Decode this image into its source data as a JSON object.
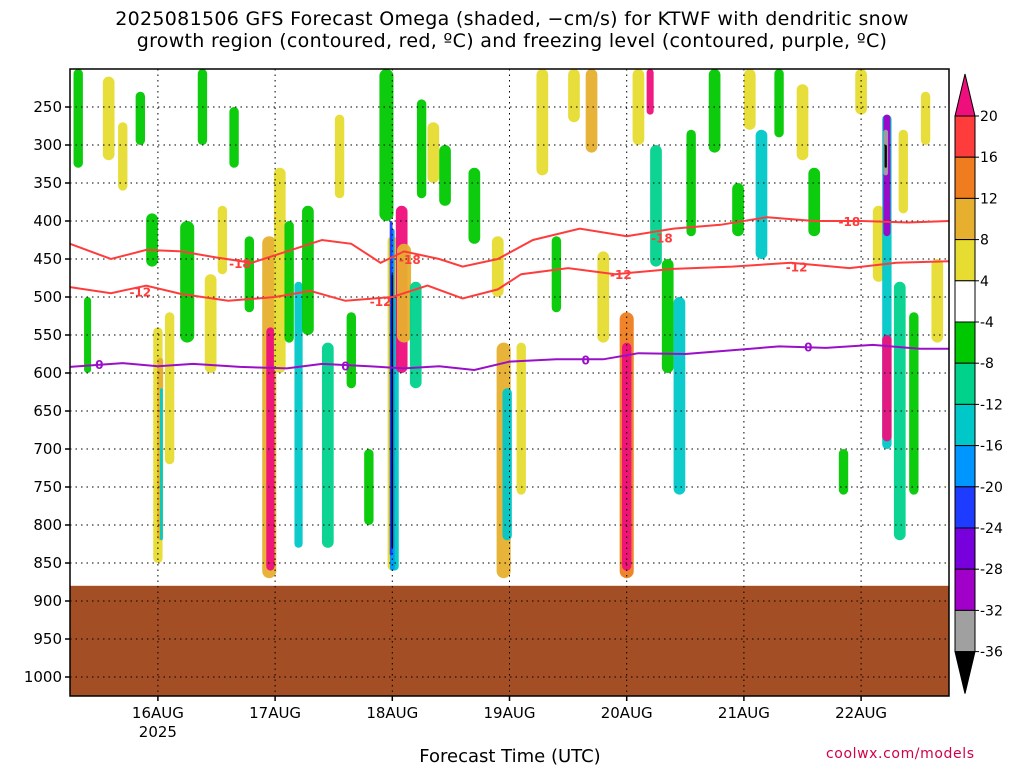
{
  "chart_data": {
    "type": "heatmap",
    "title_line1": "2025081506 GFS Forecast Omega (shaded, −cm/s) for KTWF with dendritic snow",
    "title_line2": "growth region (contoured, red, ºC) and freezing level (contoured, purple, ºC)",
    "xlabel": "Forecast Time (UTC)",
    "credit": "coolwx.com/models",
    "x_ticks": [
      {
        "label": "16AUG",
        "day": 1
      },
      {
        "label": "17AUG",
        "day": 2
      },
      {
        "label": "18AUG",
        "day": 3
      },
      {
        "label": "19AUG",
        "day": 4
      },
      {
        "label": "20AUG",
        "day": 5
      },
      {
        "label": "21AUG",
        "day": 6
      },
      {
        "label": "22AUG",
        "day": 7
      }
    ],
    "year_label": "2025",
    "xlim_days": [
      0.25,
      7.75
    ],
    "y_ticks": [
      250,
      300,
      350,
      400,
      450,
      500,
      550,
      600,
      650,
      700,
      750,
      800,
      850,
      900,
      950,
      1000
    ],
    "ylim_hpa": [
      200,
      1025
    ],
    "ground_top_hpa": 880,
    "colorbar": {
      "labels": [
        "20",
        "16",
        "12",
        "8",
        "4",
        "-4",
        "-8",
        "-12",
        "-16",
        "-20",
        "-24",
        "-28",
        "-32",
        "-36"
      ],
      "colors": [
        "#ee0f7c",
        "#ff3c3c",
        "#ef7d1f",
        "#e6af2d",
        "#e6dc32",
        "#ffffff",
        "#00c800",
        "#00d28c",
        "#00c8c8",
        "#0096ff",
        "#1e3cff",
        "#7800dc",
        "#a000c8",
        "#a0a0a0",
        "#000000"
      ]
    },
    "contours": [
      {
        "name": "-18",
        "color": "#ff3c3c",
        "points": [
          [
            0.25,
            430
          ],
          [
            0.6,
            450
          ],
          [
            0.9,
            438
          ],
          [
            1.2,
            440
          ],
          [
            1.5,
            448
          ],
          [
            1.8,
            455
          ],
          [
            2.1,
            440
          ],
          [
            2.4,
            425
          ],
          [
            2.65,
            430
          ],
          [
            2.9,
            455
          ],
          [
            3.1,
            440
          ],
          [
            3.4,
            450
          ],
          [
            3.6,
            460
          ],
          [
            3.9,
            450
          ],
          [
            4.2,
            425
          ],
          [
            4.6,
            410
          ],
          [
            5.0,
            420
          ],
          [
            5.4,
            410
          ],
          [
            5.8,
            405
          ],
          [
            6.2,
            395
          ],
          [
            6.6,
            400
          ],
          [
            7.0,
            400
          ],
          [
            7.4,
            402
          ],
          [
            7.75,
            400
          ]
        ],
        "labels": [
          [
            1.7,
            455,
            "-18"
          ],
          [
            3.15,
            450,
            "-18"
          ],
          [
            5.3,
            422,
            "-18"
          ],
          [
            6.9,
            400,
            "-18"
          ]
        ]
      },
      {
        "name": "-12",
        "color": "#ff3c3c",
        "points": [
          [
            0.25,
            487
          ],
          [
            0.6,
            495
          ],
          [
            0.9,
            485
          ],
          [
            1.2,
            496
          ],
          [
            1.6,
            505
          ],
          [
            2.0,
            500
          ],
          [
            2.3,
            492
          ],
          [
            2.6,
            505
          ],
          [
            3.0,
            500
          ],
          [
            3.3,
            485
          ],
          [
            3.6,
            502
          ],
          [
            3.9,
            490
          ],
          [
            4.1,
            470
          ],
          [
            4.5,
            462
          ],
          [
            4.9,
            470
          ],
          [
            5.4,
            463
          ],
          [
            5.9,
            460
          ],
          [
            6.4,
            455
          ],
          [
            6.9,
            462
          ],
          [
            7.3,
            455
          ],
          [
            7.75,
            453
          ]
        ],
        "labels": [
          [
            0.85,
            493,
            "-12"
          ],
          [
            2.9,
            505,
            "-12"
          ],
          [
            4.95,
            470,
            "-12"
          ],
          [
            6.45,
            460,
            "-12"
          ]
        ]
      },
      {
        "name": "0",
        "color": "#9a10c8",
        "points": [
          [
            0.25,
            592
          ],
          [
            0.7,
            587
          ],
          [
            1.0,
            591
          ],
          [
            1.3,
            588
          ],
          [
            1.7,
            592
          ],
          [
            2.1,
            594
          ],
          [
            2.4,
            588
          ],
          [
            2.8,
            591
          ],
          [
            3.1,
            594
          ],
          [
            3.4,
            591
          ],
          [
            3.7,
            596
          ],
          [
            4.0,
            585
          ],
          [
            4.4,
            582
          ],
          [
            4.8,
            582
          ],
          [
            5.1,
            574
          ],
          [
            5.5,
            575
          ],
          [
            5.9,
            570
          ],
          [
            6.3,
            565
          ],
          [
            6.7,
            567
          ],
          [
            7.1,
            563
          ],
          [
            7.5,
            568
          ],
          [
            7.75,
            568
          ]
        ],
        "labels": [
          [
            0.5,
            588,
            "0"
          ],
          [
            2.6,
            590,
            "0"
          ],
          [
            4.65,
            582,
            "0"
          ],
          [
            6.55,
            565,
            "0"
          ]
        ]
      }
    ]
  }
}
